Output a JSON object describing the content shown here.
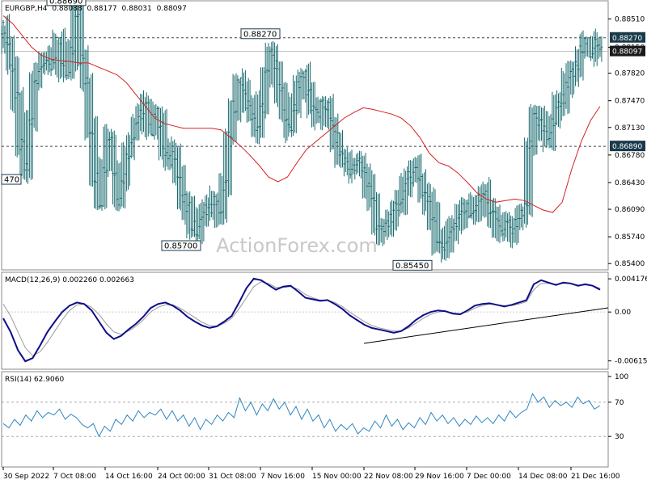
{
  "header": {
    "symbol": "EURGBP,H4",
    "open": "0.88088",
    "high": "0.88177",
    "low": "0.88031",
    "close": "0.88097"
  },
  "watermark": "ActionForex.com",
  "colors": {
    "candles": "#1a6b70",
    "ma": "#d62020",
    "macd": "#0d0d8a",
    "signal": "#999999",
    "rsi": "#2e86c1",
    "current_price_box": "#1a1a1a",
    "label_box": "#1a3a4a"
  },
  "chart_data": [
    {
      "type": "line",
      "panel": "price",
      "title": "EURGBP,H4",
      "x_labels": [
        "30 Sep 2022",
        "7 Oct 08:00",
        "14 Oct 16:00",
        "24 Oct 00:00",
        "31 Oct 08:00",
        "7 Nov 16:00",
        "15 Nov 00:00",
        "22 Nov 08:00",
        "29 Nov 16:00",
        "7 Dec 00:00",
        "14 Dec 08:00",
        "21 Dec 16:00"
      ],
      "y_ticks": [
        "0.88510",
        "0.88150",
        "0.87820",
        "0.87470",
        "0.87130",
        "0.86780",
        "0.86430",
        "0.86090",
        "0.85740",
        "0.85400"
      ],
      "ylim": [
        0.8532,
        0.8874
      ],
      "horizontal_levels": [
        {
          "value": 0.8827,
          "label": "0.88270"
        },
        {
          "value": 0.8689,
          "label": "0.86890"
        }
      ],
      "current_price": {
        "value": 0.88097,
        "label": "0.88097"
      },
      "annotations": [
        {
          "label": "0.88690",
          "value": 0.8869
        },
        {
          "label": "0.88270",
          "value": 0.8827
        },
        {
          "label": "0.85700",
          "value": 0.857
        },
        {
          "label": "0.85450",
          "value": 0.8545
        },
        {
          "label": "470",
          "value": 0.8647
        }
      ],
      "series": [
        {
          "kind": "candles",
          "values": [
            0.884,
            0.882,
            0.879,
            0.875,
            0.869,
            0.866,
            0.872,
            0.877,
            0.879,
            0.88,
            0.879,
            0.88,
            0.882,
            0.879,
            0.878,
            0.881,
            0.886,
            0.88,
            0.877,
            0.871,
            0.865,
            0.862,
            0.866,
            0.87,
            0.866,
            0.862,
            0.865,
            0.868,
            0.87,
            0.872,
            0.873,
            0.874,
            0.871,
            0.873,
            0.872,
            0.868,
            0.867,
            0.868,
            0.865,
            0.862,
            0.861,
            0.859,
            0.858,
            0.86,
            0.861,
            0.861,
            0.862,
            0.86,
            0.864,
            0.87,
            0.874,
            0.877,
            0.876,
            0.874,
            0.873,
            0.871,
            0.874,
            0.878,
            0.881,
            0.879,
            0.876,
            0.873,
            0.871,
            0.874,
            0.877,
            0.878,
            0.876,
            0.874,
            0.873,
            0.874,
            0.874,
            0.872,
            0.87,
            0.868,
            0.867,
            0.866,
            0.866,
            0.867,
            0.866,
            0.864,
            0.862,
            0.859,
            0.858,
            0.859,
            0.86,
            0.861,
            0.862,
            0.864,
            0.865,
            0.866,
            0.865,
            0.863,
            0.862,
            0.86,
            0.857,
            0.856,
            0.857,
            0.858,
            0.859,
            0.861,
            0.861,
            0.86,
            0.861,
            0.862,
            0.863,
            0.861,
            0.86,
            0.859,
            0.858,
            0.859,
            0.858,
            0.859,
            0.86,
            0.861,
            0.869,
            0.873,
            0.872,
            0.871,
            0.87,
            0.872,
            0.874,
            0.875,
            0.877,
            0.878,
            0.879,
            0.881,
            0.882,
            0.881,
            0.882,
            0.881
          ]
        },
        {
          "kind": "moving_average",
          "values": [
            0.8855,
            0.8845,
            0.883,
            0.8815,
            0.8805,
            0.88,
            0.8798,
            0.8797,
            0.8795,
            0.8795,
            0.879,
            0.8785,
            0.878,
            0.877,
            0.8755,
            0.874,
            0.8725,
            0.8718,
            0.8715,
            0.8712,
            0.8712,
            0.8712,
            0.8712,
            0.871,
            0.87,
            0.869,
            0.8678,
            0.8665,
            0.865,
            0.8644,
            0.865,
            0.8668,
            0.8685,
            0.8695,
            0.8705,
            0.8715,
            0.8725,
            0.8732,
            0.8738,
            0.8736,
            0.8733,
            0.873,
            0.8725,
            0.8715,
            0.87,
            0.868,
            0.8668,
            0.8664,
            0.8655,
            0.8643,
            0.863,
            0.8622,
            0.8618,
            0.862,
            0.8622,
            0.862,
            0.8614,
            0.8608,
            0.8605,
            0.8618,
            0.866,
            0.8695,
            0.8722,
            0.874
          ]
        }
      ]
    },
    {
      "type": "line",
      "panel": "macd",
      "title": "MACD(12,26,9) 0.002260 0.002663",
      "y_ticks": [
        "0.004176",
        "0.00",
        "-0.006151"
      ],
      "ylim": [
        -0.0072,
        0.005
      ],
      "series": [
        {
          "kind": "macd",
          "values": [
            -0.0008,
            -0.0025,
            -0.0048,
            -0.0062,
            -0.0058,
            -0.0042,
            -0.0025,
            -0.0012,
            0.0,
            0.0008,
            0.0012,
            0.001,
            0.0002,
            -0.0012,
            -0.0026,
            -0.0034,
            -0.003,
            -0.0022,
            -0.0015,
            -0.0006,
            0.0005,
            0.001,
            0.0012,
            0.0008,
            0.0002,
            -0.0006,
            -0.0012,
            -0.0017,
            -0.002,
            -0.0018,
            -0.0012,
            -0.0005,
            0.0012,
            0.003,
            0.0042,
            0.004,
            0.0034,
            0.0028,
            0.0032,
            0.0033,
            0.0026,
            0.0018,
            0.0016,
            0.0014,
            0.0015,
            0.001,
            0.0004,
            -0.0004,
            -0.001,
            -0.0016,
            -0.002,
            -0.0022,
            -0.0024,
            -0.0026,
            -0.0024,
            -0.0018,
            -0.001,
            -0.0004,
            0.0,
            0.0002,
            0.0001,
            -0.0002,
            -0.0003,
            0.0002,
            0.0008,
            0.001,
            0.0011,
            0.0009,
            0.0007,
            0.0009,
            0.0012,
            0.0015,
            0.0035,
            0.004,
            0.0037,
            0.0034,
            0.0037,
            0.0036,
            0.0033,
            0.0035,
            0.0033,
            0.0028
          ]
        },
        {
          "kind": "signal",
          "values": [
            0.001,
            -0.0005,
            -0.0025,
            -0.0045,
            -0.0055,
            -0.005,
            -0.0038,
            -0.0024,
            -0.001,
            0.0002,
            0.0009,
            0.001,
            0.0006,
            -0.0003,
            -0.0015,
            -0.0025,
            -0.0028,
            -0.0024,
            -0.0018,
            -0.001,
            0.0,
            0.0006,
            0.0009,
            0.0009,
            0.0005,
            -0.0001,
            -0.0007,
            -0.0013,
            -0.0017,
            -0.0018,
            -0.0014,
            -0.0008,
            0.0004,
            0.0018,
            0.0032,
            0.0038,
            0.0036,
            0.0031,
            0.0031,
            0.0032,
            0.0029,
            0.0022,
            0.0018,
            0.0015,
            0.0015,
            0.0012,
            0.0007,
            0.0,
            -0.0006,
            -0.0012,
            -0.0017,
            -0.002,
            -0.0022,
            -0.0024,
            -0.0024,
            -0.002,
            -0.0014,
            -0.0008,
            -0.0003,
            0.0,
            0.0001,
            -0.0001,
            -0.0002,
            0.0,
            0.0005,
            0.0008,
            0.001,
            0.0009,
            0.0008,
            0.0008,
            0.001,
            0.0013,
            0.0028,
            0.0036,
            0.0036,
            0.0035,
            0.0036,
            0.0036,
            0.0034,
            0.0034,
            0.0033,
            0.003
          ]
        }
      ]
    },
    {
      "type": "line",
      "panel": "rsi",
      "title": "RSI(14) 62.9060",
      "y_ticks": [
        "100",
        "70",
        "30"
      ],
      "ylim": [
        0,
        100
      ],
      "levels": [
        70,
        30
      ],
      "series": [
        {
          "kind": "rsi",
          "values": [
            45,
            40,
            50,
            43,
            55,
            48,
            60,
            52,
            58,
            55,
            62,
            50,
            56,
            52,
            44,
            40,
            45,
            30,
            42,
            36,
            50,
            44,
            55,
            48,
            60,
            52,
            58,
            55,
            62,
            50,
            60,
            48,
            55,
            42,
            52,
            38,
            50,
            44,
            55,
            48,
            58,
            52,
            75,
            60,
            70,
            55,
            68,
            60,
            74,
            62,
            70,
            55,
            65,
            50,
            62,
            48,
            55,
            40,
            50,
            36,
            44,
            38,
            45,
            33,
            40,
            36,
            48,
            40,
            55,
            42,
            50,
            38,
            46,
            40,
            52,
            44,
            58,
            48,
            55,
            45,
            52,
            42,
            50,
            44,
            54,
            46,
            52,
            45,
            55,
            48,
            60,
            52,
            58,
            62,
            80,
            70,
            76,
            64,
            72,
            66,
            70,
            64,
            76,
            68,
            72,
            62,
            66
          ]
        }
      ]
    }
  ]
}
